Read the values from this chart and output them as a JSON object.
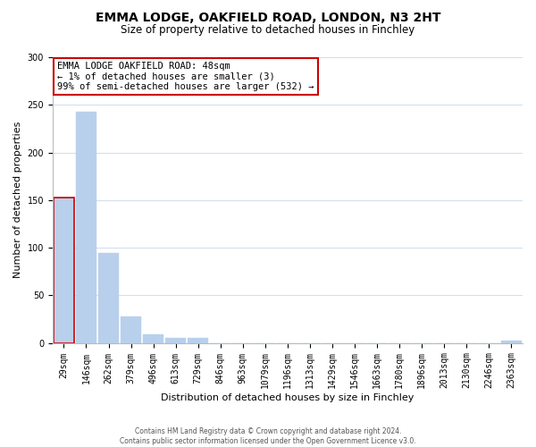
{
  "title": "EMMA LODGE, OAKFIELD ROAD, LONDON, N3 2HT",
  "subtitle": "Size of property relative to detached houses in Finchley",
  "xlabel": "Distribution of detached houses by size in Finchley",
  "ylabel": "Number of detached properties",
  "footer_line1": "Contains HM Land Registry data © Crown copyright and database right 2024.",
  "footer_line2": "Contains public sector information licensed under the Open Government Licence v3.0.",
  "bin_labels": [
    "29sqm",
    "146sqm",
    "262sqm",
    "379sqm",
    "496sqm",
    "613sqm",
    "729sqm",
    "846sqm",
    "963sqm",
    "1079sqm",
    "1196sqm",
    "1313sqm",
    "1429sqm",
    "1546sqm",
    "1663sqm",
    "1780sqm",
    "1896sqm",
    "2013sqm",
    "2130sqm",
    "2246sqm",
    "2363sqm"
  ],
  "bar_heights": [
    153,
    243,
    94,
    28,
    9,
    5,
    5,
    0,
    0,
    0,
    0,
    0,
    0,
    0,
    0,
    0,
    0,
    0,
    0,
    0,
    2
  ],
  "bar_color": "#b8d0eb",
  "bar_edge_color": "#b8d0eb",
  "highlight_bar_index": 0,
  "highlight_bar_edge_color": "#cc0000",
  "ylim": [
    0,
    300
  ],
  "yticks": [
    0,
    50,
    100,
    150,
    200,
    250,
    300
  ],
  "annotation_box_text": "EMMA LODGE OAKFIELD ROAD: 48sqm\n← 1% of detached houses are smaller (3)\n99% of semi-detached houses are larger (532) →",
  "box_edge_color": "#cc0000",
  "grid_color": "#d4dff0",
  "background_color": "#ffffff",
  "spine_color": "#bbbbbb",
  "title_fontsize": 10,
  "subtitle_fontsize": 8.5,
  "ylabel_fontsize": 8,
  "xlabel_fontsize": 8,
  "tick_fontsize": 7,
  "annotation_fontsize": 7.5,
  "footer_fontsize": 5.5,
  "footer_color": "#555555"
}
